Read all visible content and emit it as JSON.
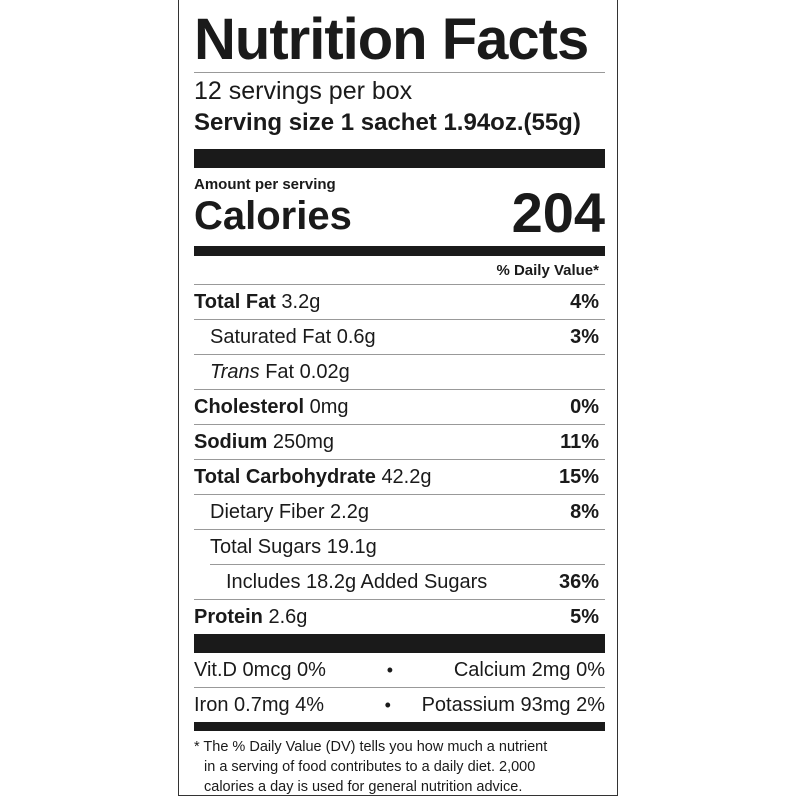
{
  "title": "Nutrition Facts",
  "servings_per_container": "12 servings per box",
  "serving_size": "Serving size 1 sachet 1.94oz.(55g)",
  "amount_per_serving": "Amount per serving",
  "calories_label": "Calories",
  "calories_value": "204",
  "daily_value_header": "% Daily Value*",
  "nutrients": [
    {
      "name": "Total Fat",
      "amount": "3.2g",
      "dv": "4%"
    },
    {
      "name": "Saturated Fat",
      "amount": "0.6g",
      "dv": "3%"
    },
    {
      "name": "Trans",
      "name_suffix": "Fat",
      "amount": "0.02g",
      "dv": ""
    },
    {
      "name": "Cholesterol",
      "amount": "0mg",
      "dv": "0%"
    },
    {
      "name": "Sodium",
      "amount": "250mg",
      "dv": "11%"
    },
    {
      "name": "Total Carbohydrate",
      "amount": "42.2g",
      "dv": "15%"
    },
    {
      "name": "Dietary Fiber",
      "amount": "2.2g",
      "dv": "8%"
    },
    {
      "name": "Total Sugars",
      "amount": "19.1g",
      "dv": ""
    },
    {
      "name": "Includes 18.2g Added Sugars",
      "amount": "",
      "dv": "36%"
    },
    {
      "name": "Protein",
      "amount": "2.6g",
      "dv": "5%"
    }
  ],
  "vitamins": [
    {
      "left": "Vit.D 0mcg 0%",
      "right": "Calcium 2mg 0%"
    },
    {
      "left": "Iron 0.7mg 4%",
      "right": "Potassium 93mg 2%"
    }
  ],
  "bullet": "•",
  "footnote": {
    "line1": "* The % Daily Value (DV) tells you how much a nutrient",
    "line2": "in a serving of food contributes to a daily diet. 2,000",
    "line3": "calories a day is used for general nutrition advice."
  }
}
